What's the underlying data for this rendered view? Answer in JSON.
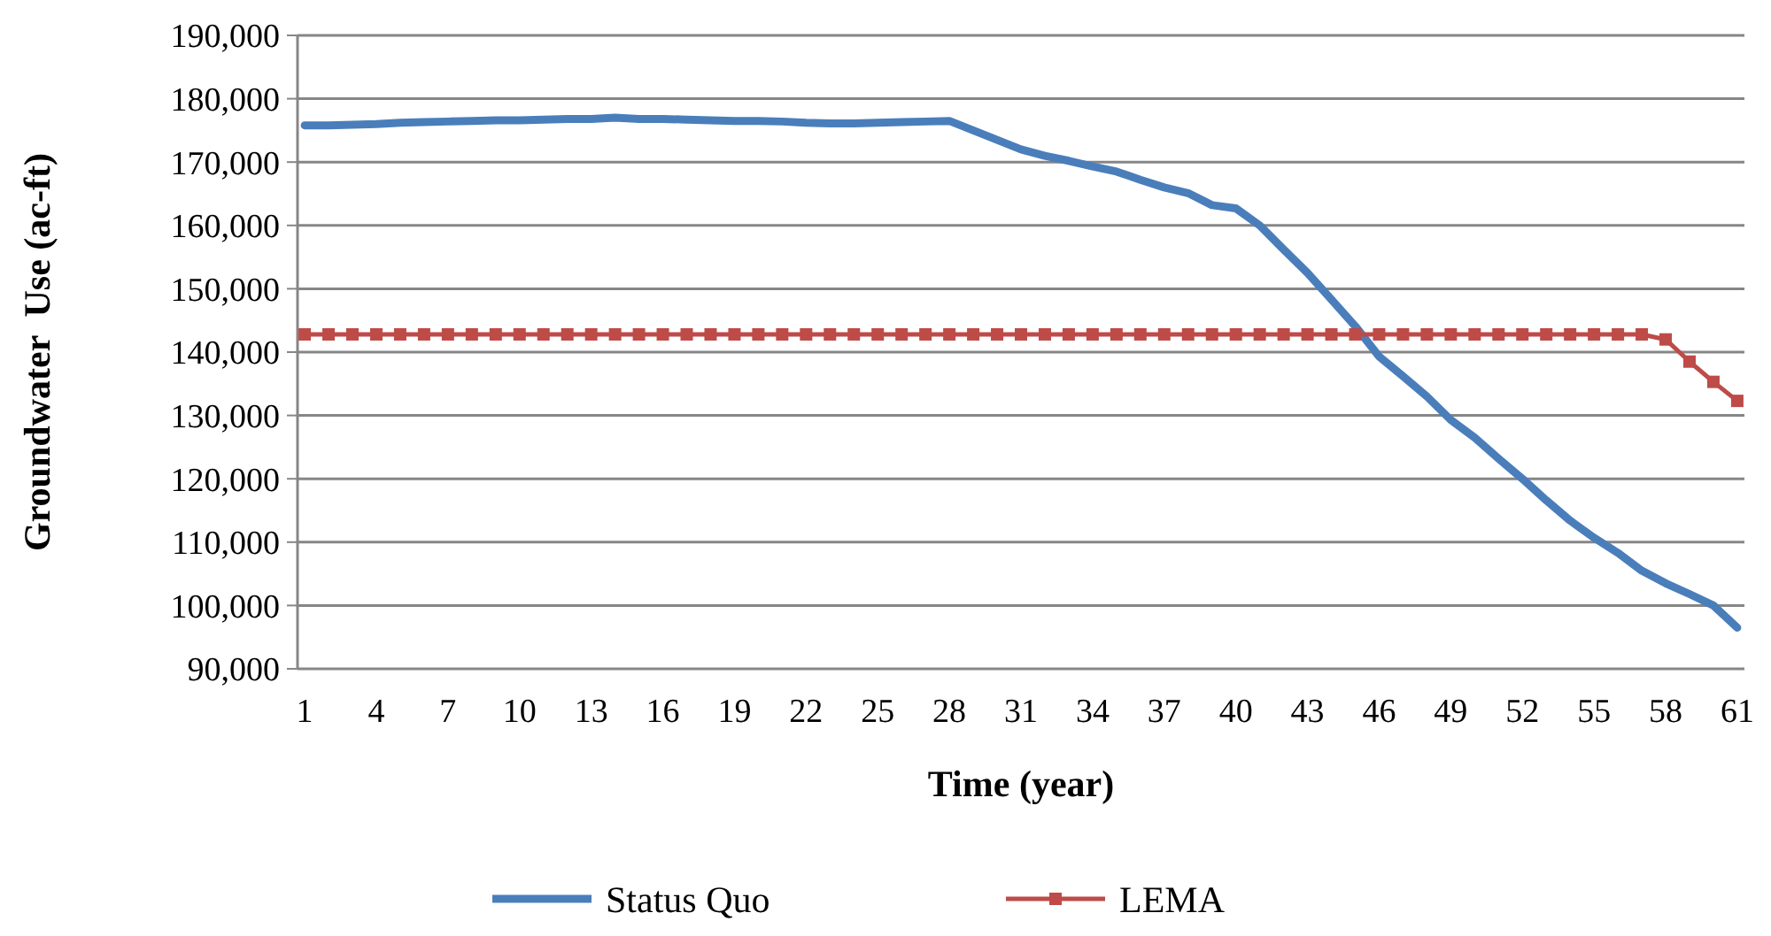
{
  "chart_data": {
    "type": "line",
    "xlabel": "Time (year)",
    "ylabel": "Groundwater  Use (ac-ft)",
    "categories": [
      "1",
      null,
      null,
      "4",
      null,
      null,
      "7",
      null,
      null,
      "10",
      null,
      null,
      "13",
      null,
      null,
      "16",
      null,
      null,
      "19",
      null,
      null,
      "22",
      null,
      null,
      "25",
      null,
      null,
      "28",
      null,
      null,
      "31",
      null,
      null,
      "34",
      null,
      null,
      "37",
      null,
      null,
      "40",
      null,
      null,
      "43",
      null,
      null,
      "46",
      null,
      null,
      "49",
      null,
      null,
      "52",
      null,
      null,
      "55",
      null,
      null,
      "58",
      null,
      null,
      "61"
    ],
    "ylim": [
      90000,
      190000
    ],
    "yticks": [
      {
        "value": 90000,
        "label": "90,000"
      },
      {
        "value": 100000,
        "label": "100,000"
      },
      {
        "value": 110000,
        "label": "110,000"
      },
      {
        "value": 120000,
        "label": "120,000"
      },
      {
        "value": 130000,
        "label": "130,000"
      },
      {
        "value": 140000,
        "label": "140,000"
      },
      {
        "value": 150000,
        "label": "150,000"
      },
      {
        "value": 160000,
        "label": "160,000"
      },
      {
        "value": 170000,
        "label": "170,000"
      },
      {
        "value": 180000,
        "label": "180,000"
      },
      {
        "value": 190000,
        "label": "190,000"
      }
    ],
    "grid": "y",
    "legend": "bottom",
    "series": [
      {
        "name": "Status Quo",
        "color": "#4a7ebb",
        "marker": "none",
        "values": [
          175800,
          175800,
          175900,
          176000,
          176200,
          176300,
          176400,
          176500,
          176600,
          176600,
          176700,
          176800,
          176800,
          177000,
          176800,
          176800,
          176700,
          176600,
          176500,
          176500,
          176400,
          176200,
          176100,
          176100,
          176200,
          176300,
          176400,
          176500,
          175000,
          173500,
          172000,
          171000,
          170200,
          169300,
          168500,
          167200,
          166000,
          165100,
          163200,
          162700,
          160000,
          156200,
          152500,
          148300,
          144100,
          139300,
          136200,
          133000,
          129300,
          126500,
          123200,
          120000,
          116600,
          113400,
          110700,
          108300,
          105500,
          103500,
          101800,
          100000,
          96500
        ]
      },
      {
        "name": "LEMA",
        "color": "#be4b48",
        "marker": "square",
        "values": [
          142800,
          142800,
          142800,
          142800,
          142800,
          142800,
          142800,
          142800,
          142800,
          142800,
          142800,
          142800,
          142800,
          142800,
          142800,
          142800,
          142800,
          142800,
          142800,
          142800,
          142800,
          142800,
          142800,
          142800,
          142800,
          142800,
          142800,
          142800,
          142800,
          142800,
          142800,
          142800,
          142800,
          142800,
          142800,
          142800,
          142800,
          142800,
          142800,
          142800,
          142800,
          142800,
          142800,
          142800,
          142800,
          142800,
          142800,
          142800,
          142800,
          142800,
          142800,
          142800,
          142800,
          142800,
          142800,
          142800,
          142800,
          142000,
          138500,
          135300,
          132300
        ]
      }
    ]
  }
}
